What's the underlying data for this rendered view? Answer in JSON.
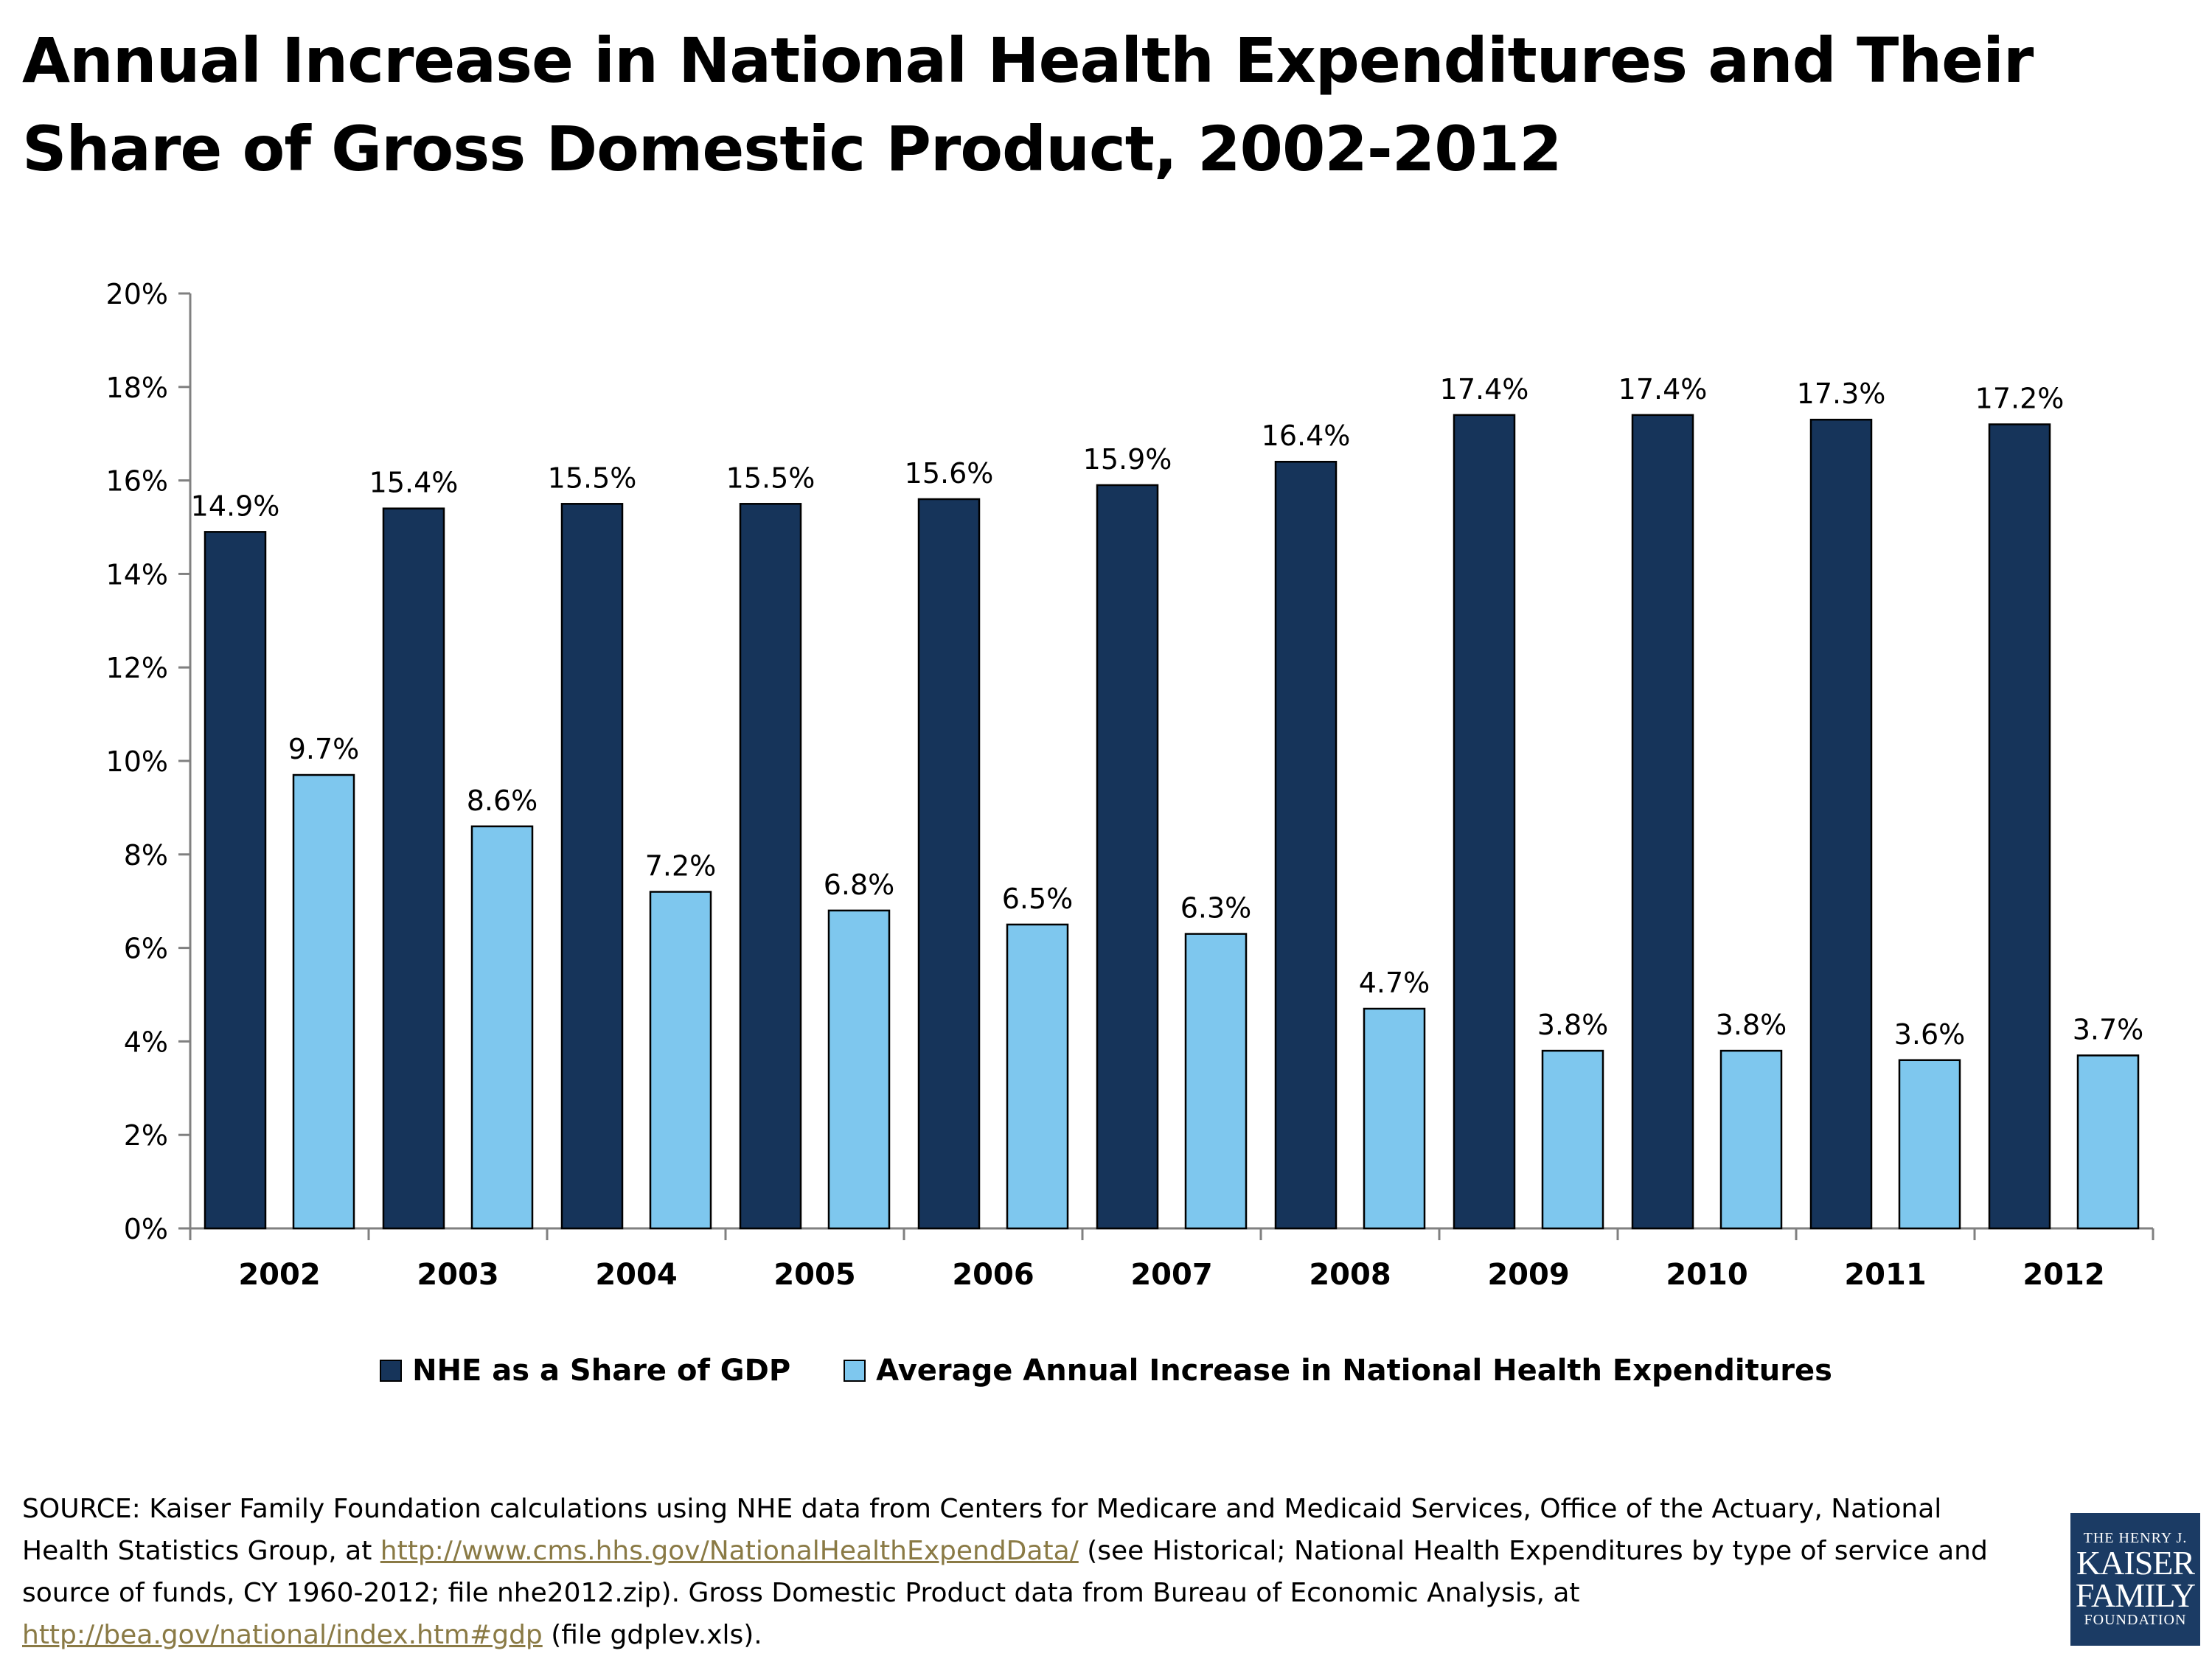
{
  "title": "Annual Increase in National Health Expenditures and Their Share of Gross Domestic Product, 2002-2012",
  "colors": {
    "nhe_share": "#16345a",
    "avg_increase": "#7ec7ee",
    "axis": "#808080",
    "link": "#8a7a45"
  },
  "chart_data": {
    "type": "bar",
    "categories": [
      "2002",
      "2003",
      "2004",
      "2005",
      "2006",
      "2007",
      "2008",
      "2009",
      "2010",
      "2011",
      "2012"
    ],
    "series": [
      {
        "name": "NHE as a Share of GDP",
        "values": [
          14.9,
          15.4,
          15.5,
          15.5,
          15.6,
          15.9,
          16.4,
          17.4,
          17.4,
          17.3,
          17.2
        ],
        "labels": [
          "14.9%",
          "15.4%",
          "15.5%",
          "15.5%",
          "15.6%",
          "15.9%",
          "16.4%",
          "17.4%",
          "17.4%",
          "17.3%",
          "17.2%"
        ]
      },
      {
        "name": "Average Annual Increase in National Health Expenditures",
        "values": [
          9.7,
          8.6,
          7.2,
          6.8,
          6.5,
          6.3,
          4.7,
          3.8,
          3.8,
          3.6,
          3.7
        ],
        "labels": [
          "9.7%",
          "8.6%",
          "7.2%",
          "6.8%",
          "6.5%",
          "6.3%",
          "4.7%",
          "3.8%",
          "3.8%",
          "3.6%",
          "3.7%"
        ]
      }
    ],
    "ylim": [
      0,
      20
    ],
    "yticks": [
      0,
      2,
      4,
      6,
      8,
      10,
      12,
      14,
      16,
      18,
      20
    ],
    "ytick_labels": [
      "0%",
      "2%",
      "4%",
      "6%",
      "8%",
      "10%",
      "12%",
      "14%",
      "16%",
      "18%",
      "20%"
    ],
    "grid": false,
    "legend_position": "bottom"
  },
  "source": {
    "text1": "SOURCE: Kaiser Family Foundation calculations using NHE data from Centers for Medicare and Medicaid Services, Office of the Actuary, National Health Statistics Group, at ",
    "link1": "http://www.cms.hhs.gov/NationalHealthExpendData/",
    "text2": " (see Historical; National Health Expenditures by type of service and source of funds, CY 1960-2012; file nhe2012.zip). Gross Domestic Product data from Bureau of Economic Analysis, at ",
    "link2": "http://bea.gov/national/index.htm#gdp",
    "text3": " (file gdplev.xls)."
  },
  "logo": {
    "line1": "THE HENRY J.",
    "line2a": "KAISER",
    "line2b": "FAMILY",
    "line3": "FOUNDATION"
  }
}
